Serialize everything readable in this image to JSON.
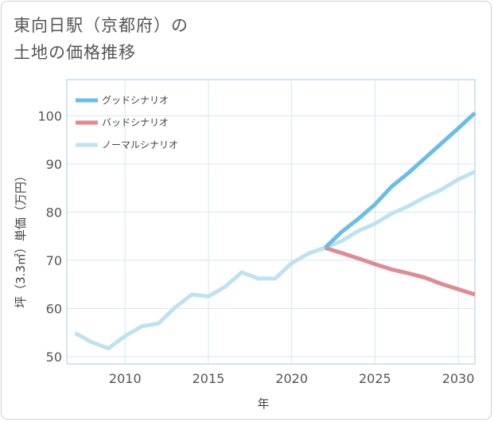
{
  "title": {
    "line1": "東向日駅（京都府）の",
    "line2": "土地の価格推移"
  },
  "colors": {
    "good": "#6bbde8",
    "bad": "#e08a92",
    "normal": "#bfe2f0",
    "grid": "#d3e6f2",
    "axis": "#a9c9dd",
    "text": "#555555"
  },
  "chart_data": {
    "type": "line",
    "title": "東向日駅（京都府）の土地の価格推移",
    "xlabel": "年",
    "ylabel": "坪（3.3㎡）単価（万円）",
    "xlim": [
      2006.5,
      2031
    ],
    "ylim": [
      48.5,
      107.5
    ],
    "x_ticks": [
      2010,
      2015,
      2020,
      2025,
      2030
    ],
    "y_ticks": [
      50,
      60,
      70,
      80,
      90,
      100
    ],
    "grid": true,
    "legend_position": "top-left",
    "series": [
      {
        "name": "グッドシナリオ",
        "color": "#6bbde8",
        "x": [
          2022,
          2023,
          2024,
          2025,
          2026,
          2027,
          2028,
          2029,
          2030,
          2031
        ],
        "values": [
          72.6,
          75.9,
          78.6,
          81.6,
          85.3,
          88.1,
          91.2,
          94.3,
          97.4,
          100.6
        ]
      },
      {
        "name": "バッドシナリオ",
        "color": "#e08a92",
        "x": [
          2022,
          2023,
          2024,
          2025,
          2026,
          2027,
          2028,
          2029,
          2030,
          2031
        ],
        "values": [
          72.6,
          71.5,
          70.4,
          69.2,
          68.1,
          67.3,
          66.4,
          65.1,
          64.0,
          62.9
        ]
      },
      {
        "name": "ノーマルシナリオ",
        "color": "#bfe2f0",
        "x": [
          2007,
          2008,
          2009,
          2010,
          2011,
          2012,
          2013,
          2014,
          2015,
          2016,
          2017,
          2018,
          2019,
          2020,
          2021,
          2022,
          2023,
          2024,
          2025,
          2026,
          2027,
          2028,
          2029,
          2030,
          2031
        ],
        "values": [
          54.9,
          53.0,
          51.7,
          54.3,
          56.3,
          56.9,
          60.2,
          62.9,
          62.5,
          64.5,
          67.5,
          66.2,
          66.2,
          69.4,
          71.4,
          72.6,
          74.0,
          76.1,
          77.6,
          79.7,
          81.2,
          83.1,
          84.7,
          86.8,
          88.4
        ]
      }
    ]
  }
}
